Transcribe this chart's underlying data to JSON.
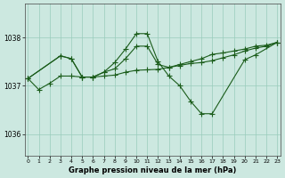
{
  "bg_color": "#cce8e0",
  "grid_color": "#99ccbb",
  "line_color": "#1a5c1a",
  "xlabel": "Graphe pression niveau de la mer (hPa)",
  "yticks": [
    1036,
    1037,
    1038
  ],
  "ylim": [
    1035.55,
    1038.7
  ],
  "xlim": [
    -0.3,
    23.3
  ],
  "xticks": [
    0,
    1,
    2,
    3,
    4,
    5,
    6,
    7,
    8,
    9,
    10,
    11,
    12,
    13,
    14,
    15,
    16,
    17,
    18,
    19,
    20,
    21,
    22,
    23
  ],
  "line1_x": [
    0,
    1,
    2,
    3,
    4,
    5,
    6,
    7,
    8,
    9,
    10,
    11,
    12,
    13,
    14,
    15,
    16,
    17,
    18,
    19,
    20,
    21,
    22,
    23
  ],
  "line1_y": [
    1037.15,
    1036.92,
    1037.05,
    1037.2,
    1037.2,
    1037.18,
    1037.18,
    1037.2,
    1037.22,
    1037.28,
    1037.32,
    1037.33,
    1037.34,
    1037.38,
    1037.42,
    1037.46,
    1037.48,
    1037.52,
    1037.58,
    1037.64,
    1037.72,
    1037.78,
    1037.82,
    1037.9
  ],
  "line2_x": [
    0,
    3,
    4,
    5,
    6,
    7,
    8,
    9,
    10,
    11,
    12,
    13,
    14,
    15,
    16,
    17,
    20,
    21,
    23
  ],
  "line2_y": [
    1037.15,
    1037.62,
    1037.56,
    1037.18,
    1037.18,
    1037.28,
    1037.48,
    1037.76,
    1038.08,
    1038.08,
    1037.5,
    1037.2,
    1037.0,
    1036.68,
    1036.42,
    1036.42,
    1037.54,
    1037.64,
    1037.9
  ],
  "line3_x": [
    0,
    3,
    4,
    5,
    6,
    7,
    8,
    9,
    10,
    11,
    12,
    13,
    14,
    15,
    16,
    17,
    18,
    19,
    20,
    21,
    22,
    23
  ],
  "line3_y": [
    1037.15,
    1037.62,
    1037.56,
    1037.18,
    1037.18,
    1037.28,
    1037.35,
    1037.56,
    1037.82,
    1037.82,
    1037.44,
    1037.38,
    1037.44,
    1037.5,
    1037.56,
    1037.65,
    1037.68,
    1037.72,
    1037.76,
    1037.82,
    1037.84,
    1037.9
  ]
}
